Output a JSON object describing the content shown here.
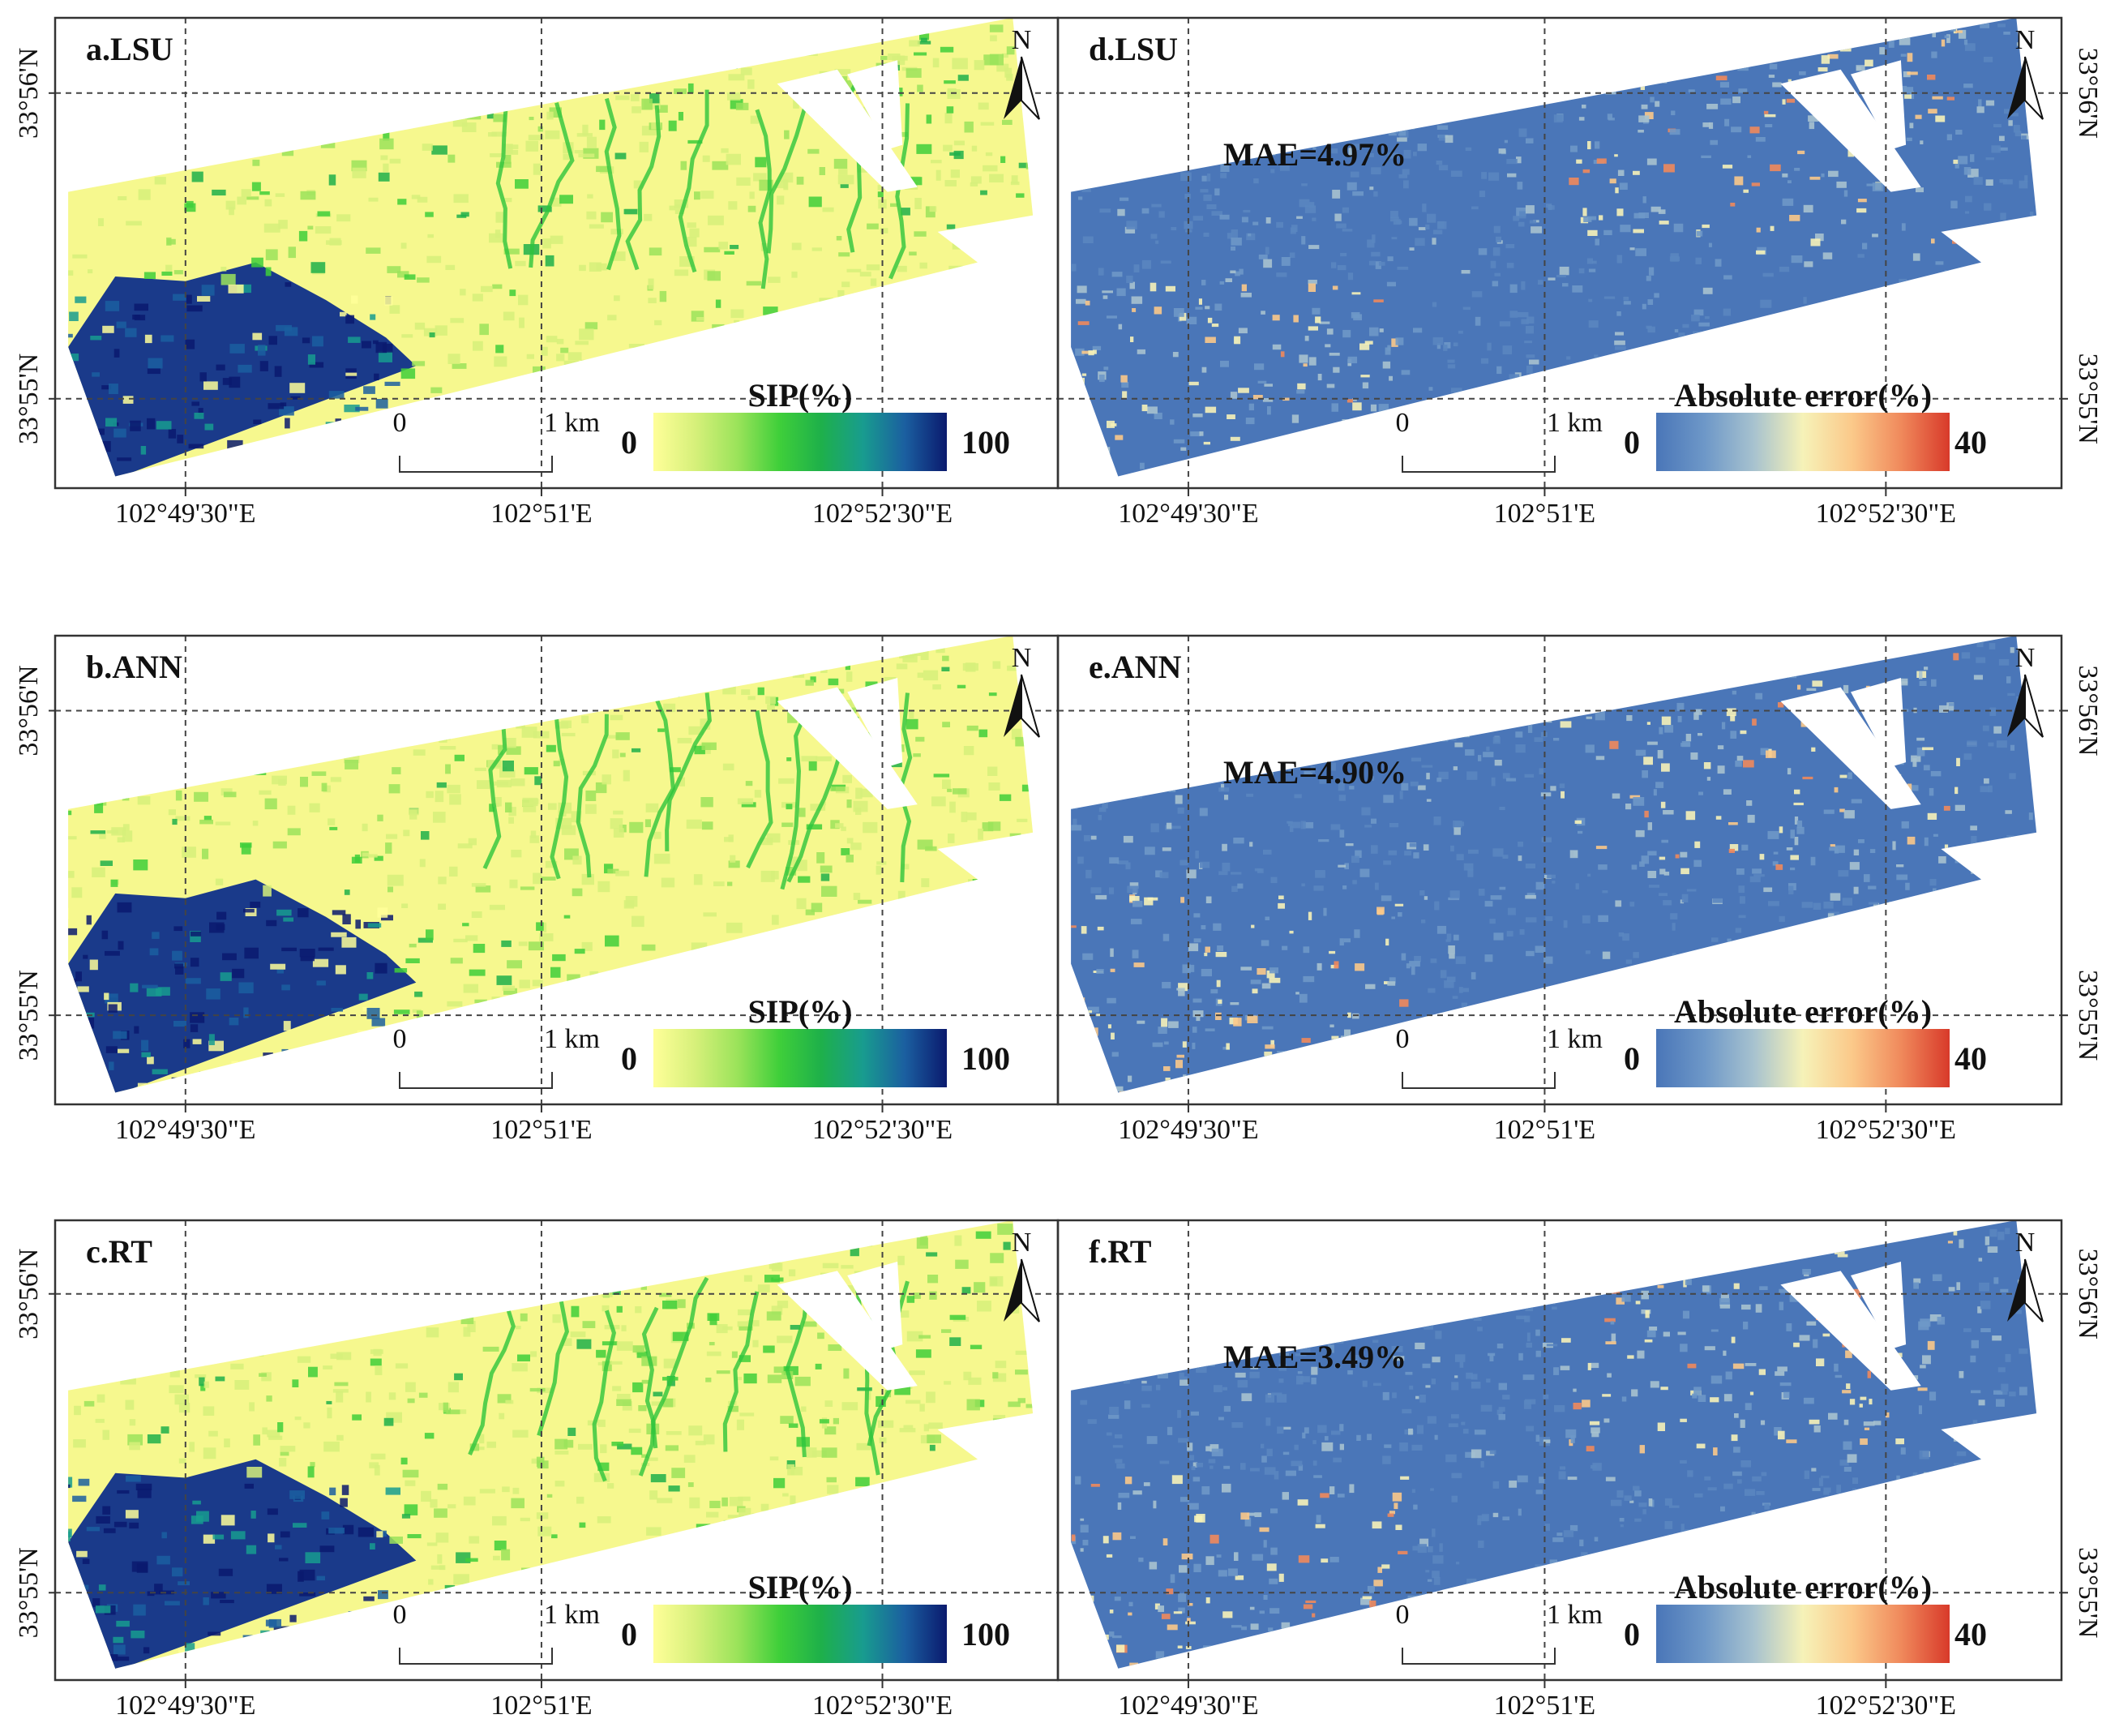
{
  "figure": {
    "colors": {
      "sip": [
        "#ffff99",
        "#d6f07a",
        "#9be35a",
        "#3fcf3a",
        "#1eb04a",
        "#189c8f",
        "#1b5fa0",
        "#0a1a6e"
      ],
      "err": [
        "#4a76b8",
        "#6e98c8",
        "#a7c2cf",
        "#f6f2b8",
        "#fbc98a",
        "#f08a5c",
        "#d83a2a"
      ],
      "sip_bg": "#f6f88e",
      "err_bg": "#4a76b8"
    },
    "north_label": "N",
    "scale_bar": {
      "zero": "0",
      "one": "1 km"
    },
    "panels": [
      {
        "id": "a",
        "title": "a.LSU",
        "type": "sip",
        "legend": {
          "title": "SIP(%)",
          "min": "0",
          "max": "100"
        },
        "lon_ticks": [
          "102°49'30\"E",
          "102°51'E",
          "102°52'30\"E"
        ],
        "lat_ticks": [
          "33°56'N",
          "33°55'N"
        ]
      },
      {
        "id": "b",
        "title": "b.ANN",
        "type": "sip",
        "legend": {
          "title": "SIP(%)",
          "min": "0",
          "max": "100"
        },
        "lon_ticks": [
          "102°49'30\"E",
          "102°51'E",
          "102°52'30\"E"
        ],
        "lat_ticks": [
          "33°56'N",
          "33°55'N"
        ]
      },
      {
        "id": "c",
        "title": "c.RT",
        "type": "sip",
        "legend": {
          "title": "SIP(%)",
          "min": "0",
          "max": "100"
        },
        "lon_ticks": [
          "102°49'30\"E",
          "102°51'E",
          "102°52'30\"E"
        ],
        "lat_ticks": [
          "33°56'N",
          "33°55'N"
        ]
      },
      {
        "id": "d",
        "title": "d.LSU",
        "type": "error",
        "mae": "MAE=4.97%",
        "legend": {
          "title": "Absolute error(%)",
          "min": "0",
          "max": "40"
        },
        "lon_ticks": [
          "102°49'30\"E",
          "102°51'E",
          "102°52'30\"E"
        ],
        "lat_ticks": [
          "33°56'N",
          "33°55'N"
        ]
      },
      {
        "id": "e",
        "title": "e.ANN",
        "type": "error",
        "mae": "MAE=4.90%",
        "legend": {
          "title": "Absolute error(%)",
          "min": "0",
          "max": "40"
        },
        "lon_ticks": [
          "102°49'30\"E",
          "102°51'E",
          "102°52'30\"E"
        ],
        "lat_ticks": [
          "33°56'N",
          "33°55'N"
        ]
      },
      {
        "id": "f",
        "title": "f.RT",
        "type": "error",
        "mae": "MAE=3.49%",
        "legend": {
          "title": "Absolute error(%)",
          "min": "0",
          "max": "40"
        },
        "lon_ticks": [
          "102°49'30\"E",
          "102°51'E",
          "102°52'30\"E"
        ],
        "lat_ticks": [
          "33°56'N",
          "33°55'N"
        ]
      }
    ]
  }
}
